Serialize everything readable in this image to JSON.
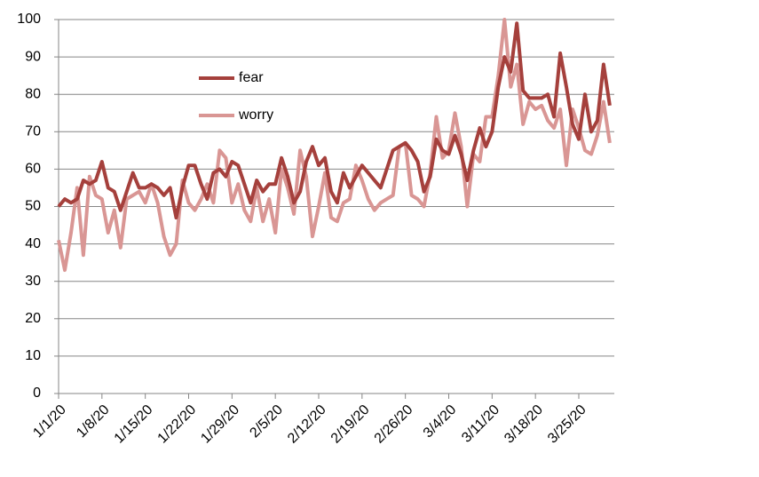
{
  "chart_data": {
    "type": "line",
    "categories": [
      "1/1/20",
      null,
      null,
      null,
      null,
      null,
      null,
      "1/8/20",
      null,
      null,
      null,
      null,
      null,
      null,
      "1/15/20",
      null,
      null,
      null,
      null,
      null,
      null,
      "1/22/20",
      null,
      null,
      null,
      null,
      null,
      null,
      "1/29/20",
      null,
      null,
      null,
      null,
      null,
      null,
      "2/5/20",
      null,
      null,
      null,
      null,
      null,
      null,
      "2/12/20",
      null,
      null,
      null,
      null,
      null,
      null,
      "2/19/20",
      null,
      null,
      null,
      null,
      null,
      null,
      "2/26/20",
      null,
      null,
      null,
      null,
      null,
      null,
      "3/4/20",
      null,
      null,
      null,
      null,
      null,
      null,
      "3/11/20",
      null,
      null,
      null,
      null,
      null,
      null,
      "3/18/20",
      null,
      null,
      null,
      null,
      null,
      null,
      "3/25/20",
      null,
      null,
      null,
      null,
      null
    ],
    "series": [
      {
        "name": "fear",
        "color": "#a5403c",
        "values": [
          50,
          52,
          51,
          52,
          57,
          56,
          57,
          62,
          55,
          54,
          49,
          54,
          59,
          55,
          55,
          56,
          55,
          53,
          55,
          47,
          55,
          61,
          61,
          56,
          52,
          59,
          60,
          58,
          62,
          61,
          56,
          51,
          57,
          54,
          56,
          56,
          63,
          58,
          51,
          54,
          62,
          66,
          61,
          63,
          54,
          51,
          59,
          55,
          58,
          61,
          59,
          57,
          55,
          60,
          65,
          66,
          67,
          65,
          62,
          54,
          58,
          68,
          65,
          64,
          69,
          64,
          57,
          65,
          71,
          66,
          70,
          82,
          90,
          86,
          99,
          81,
          79,
          79,
          79,
          80,
          74,
          91,
          82,
          72,
          68,
          80,
          70,
          73,
          88,
          77
        ]
      },
      {
        "name": "worry",
        "color": "#d99694",
        "values": [
          41,
          33,
          43,
          55,
          37,
          58,
          53,
          52,
          43,
          49,
          39,
          52,
          53,
          54,
          51,
          56,
          51,
          42,
          37,
          40,
          57,
          51,
          49,
          52,
          56,
          51,
          65,
          63,
          51,
          56,
          49,
          46,
          55,
          46,
          52,
          43,
          60,
          55,
          48,
          65,
          58,
          42,
          50,
          59,
          47,
          46,
          51,
          52,
          61,
          57,
          52,
          49,
          51,
          52,
          53,
          66,
          67,
          53,
          52,
          50,
          59,
          74,
          63,
          65,
          75,
          66,
          50,
          64,
          62,
          74,
          74,
          85,
          100,
          82,
          88,
          72,
          78,
          76,
          77,
          73,
          71,
          76,
          61,
          76,
          71,
          65,
          64,
          69,
          78,
          67
        ]
      }
    ],
    "ylim": [
      0,
      100
    ],
    "yticks": [
      0,
      10,
      20,
      30,
      40,
      50,
      60,
      70,
      80,
      90,
      100
    ],
    "grid": true
  }
}
